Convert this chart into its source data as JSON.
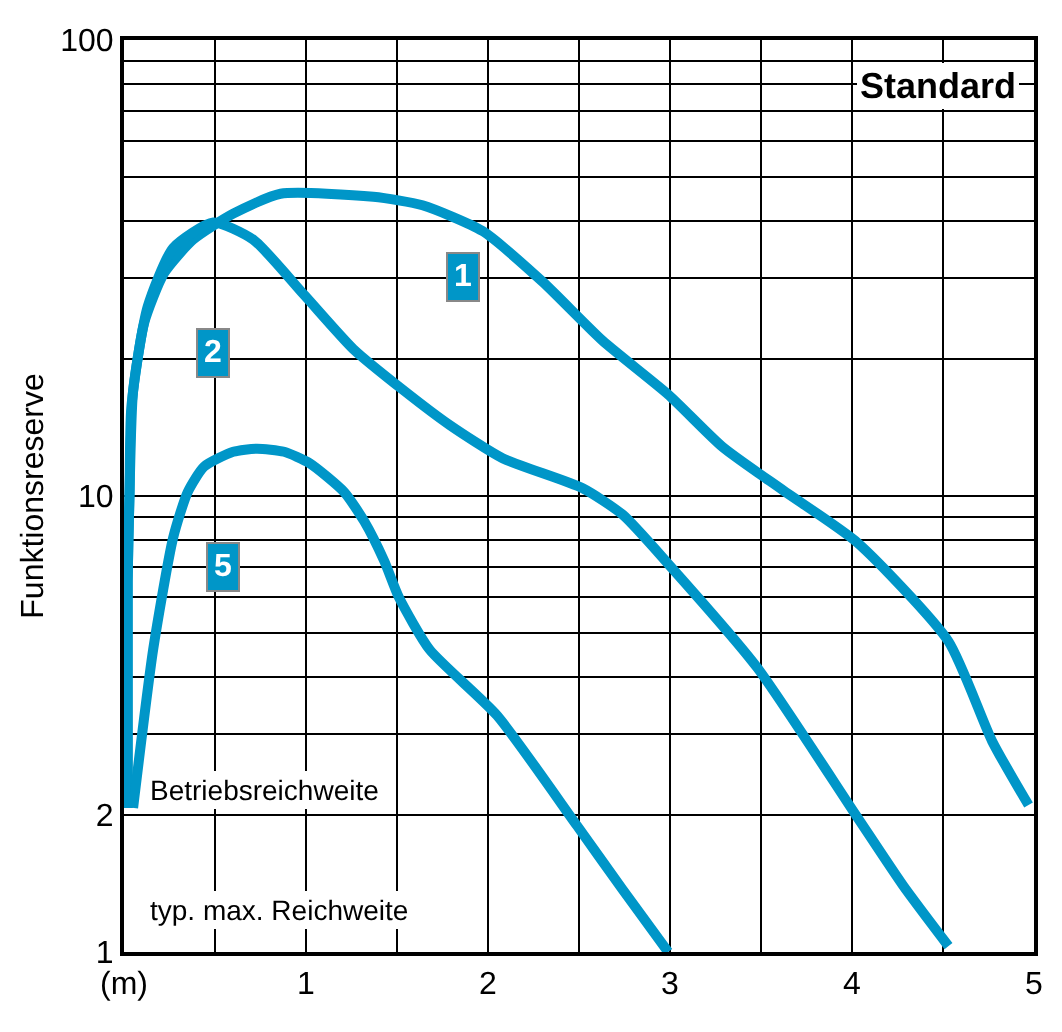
{
  "chart_data": {
    "type": "line",
    "ylabel": "Funktionsreserve",
    "log": "y",
    "grid": true,
    "legend": false,
    "marker": "none",
    "line_style": "solid",
    "xlim": [
      0,
      5
    ],
    "ylim": [
      1,
      100
    ],
    "xticks": [
      {
        "value": 0,
        "label": "(m)"
      },
      {
        "value": 0.5,
        "label": null
      },
      1,
      {
        "value": 1.5,
        "label": null
      },
      2,
      {
        "value": 2.5,
        "label": null
      },
      3,
      {
        "value": 3.5,
        "label": null
      },
      4,
      {
        "value": 4.5,
        "label": null
      },
      5
    ],
    "yticks": [
      1,
      2,
      {
        "value": 3,
        "label": null
      },
      {
        "value": 4,
        "label": null
      },
      {
        "value": 5,
        "label": null
      },
      {
        "value": 6,
        "label": null
      },
      {
        "value": 7,
        "label": null
      },
      {
        "value": 8,
        "label": null
      },
      {
        "value": 9,
        "label": null
      },
      10,
      {
        "value": 20,
        "label": null
      },
      {
        "value": 30,
        "label": null
      },
      {
        "value": 40,
        "label": null
      },
      {
        "value": 50,
        "label": null
      },
      {
        "value": 60,
        "label": null
      },
      {
        "value": 70,
        "label": null
      },
      {
        "value": 80,
        "label": null
      },
      {
        "value": 90,
        "label": null
      },
      100
    ],
    "annotations": [
      "Standard",
      "Betriebsreichweite",
      "typ. max. Reichweite"
    ],
    "series": [
      {
        "name": "1",
        "color": "#0096c8",
        "x": [
          0.02,
          0.02,
          0.03,
          0.04,
          0.11,
          0.22,
          0.38,
          0.6,
          0.86,
          1.37,
          1.64,
          1.97,
          2.3,
          2.63,
          2.99,
          3.29,
          3.62,
          4.03,
          4.53,
          4.77,
          4.97
        ],
        "values": [
          2.07,
          6.5,
          10,
          15.6,
          23.9,
          30.8,
          36.5,
          41.6,
          46,
          45.3,
          43.4,
          38.1,
          29.5,
          21.9,
          16.7,
          12.8,
          10.3,
          7.9,
          4.8,
          2.9,
          2.1
        ]
      },
      {
        "name": "2",
        "color": "#0096c8",
        "x": [
          0.02,
          0.02,
          0.03,
          0.05,
          0.13,
          0.27,
          0.49,
          0.71,
          0.99,
          1.26,
          1.54,
          1.79,
          2.08,
          2.52,
          2.74,
          2.99,
          3.48,
          4.02,
          4.28,
          4.53
        ],
        "values": [
          2.07,
          6.5,
          10,
          17,
          26,
          35,
          39.8,
          36.5,
          27.6,
          21,
          17,
          14.3,
          12.1,
          10.4,
          9.1,
          7.1,
          4.2,
          2.0,
          1.4,
          1.03
        ]
      },
      {
        "name": "5",
        "color": "#0096c8",
        "x": [
          0.05,
          0.16,
          0.27,
          0.35,
          0.44,
          0.6,
          0.73,
          0.88,
          1.02,
          1.21,
          1.32,
          1.43,
          1.51,
          1.68,
          2.05,
          2.49,
          2.74,
          2.99
        ],
        "values": [
          2.07,
          4.6,
          8.1,
          10.2,
          11.6,
          12.5,
          12.7,
          12.5,
          11.8,
          10.2,
          8.8,
          7.2,
          6.0,
          4.6,
          3.3,
          1.89,
          1.37,
          1.0
        ]
      }
    ]
  }
}
